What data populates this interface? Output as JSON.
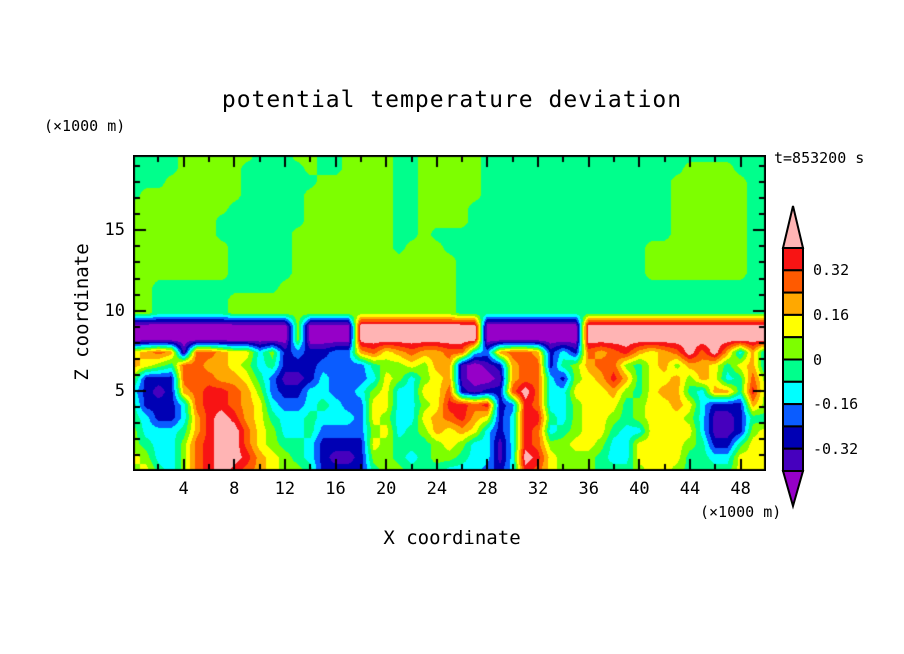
{
  "figure": {
    "title": "potential temperature deviation",
    "time_label": "t=853200 s",
    "y_unit_label": "(×1000 m)",
    "x_unit_label": "(×1000 m)"
  },
  "axes": {
    "x": {
      "label": "X coordinate",
      "ticks": [
        4,
        8,
        12,
        16,
        20,
        24,
        28,
        32,
        36,
        40,
        44,
        48
      ],
      "range": [
        0,
        50
      ],
      "major_step": 4,
      "minor_step": 2
    },
    "z": {
      "label": "Z coordinate",
      "ticks": [
        5,
        10,
        15
      ],
      "range": [
        0,
        19.7
      ],
      "major_step": 5,
      "minor_step": 1
    }
  },
  "colorbar": {
    "tick_labels": [
      {
        "text": "0.32",
        "boundary": 1
      },
      {
        "text": "0.16",
        "boundary": 3
      },
      {
        "text": "0",
        "boundary": 5
      },
      {
        "text": "-0.16",
        "boundary": 7
      },
      {
        "text": "-0.32",
        "boundary": 9
      }
    ]
  },
  "chart_data": {
    "type": "heatmap",
    "title": "potential temperature deviation",
    "xlabel": "X coordinate",
    "ylabel": "Z coordinate",
    "axis_units": "×1000 m",
    "time_label": "t=853200 s",
    "x_range": [
      0,
      50
    ],
    "z_range": [
      0,
      19.7
    ],
    "band_edges": [
      -0.4,
      -0.32,
      -0.24,
      -0.16,
      -0.08,
      0,
      0.08,
      0.16,
      0.24,
      0.32,
      0.4
    ],
    "palette_low_to_high": [
      "#9600C8",
      "#4600BE",
      "#0000B4",
      "#0A5CFF",
      "#00FFFF",
      "#00FF8C",
      "#7DFF00",
      "#FFFF00",
      "#FFA800",
      "#FF5A00",
      "#F81414",
      "#FFB4B4"
    ],
    "grid": {
      "note": "rows listed top (z=19.7) to bottom (z=0), 51 columns spanning x=0..50",
      "char_values": {
        "0": -0.46,
        "1": -0.36,
        "2": -0.28,
        "3": -0.2,
        "4": -0.12,
        "5": -0.04,
        "6": 0.04,
        "7": 0.12,
        "8": 0.2,
        "9": 0.28,
        "a": 0.36,
        "b": 0.46
      },
      "rows_top_to_bottom": [
        "555566666655566556666556666655555555555555555555555",
        "555566666555556556666556666655555555555555556666555",
        "555666666555555666666556666655555555555555566666655",
        "566666666555556666666556666655555555555555566666655",
        "666666665555556666666556666555555555555555566666655",
        "666666655555556666666556666555555555555555566666655",
        "666666655555566666666556555555555555555555566666655",
        "666666665555566666666566655555555555555556666666655",
        "666666665555566666666666665555555555555556666666655",
        "666666665555566666666666665555555555555556666666655",
        "665555555555666666666666665555555555555555555555555",
        "665555556666666666666666665555555555555555555555555",
        "665555556666666666666666665555555555555555555555555",
        "000000000000060000bbbbbbbbbb00000000bbbbbbbbbbbbbbb",
        "000000000000060000bbbbbbbbbb00000000bbbbbbbbbbbbbbb",
        "789819987746232233897898899438998242989a8789b9b8484",
        "876599887645222333356676881012899256899657868875784",
        "622299988753112433347646781001899426 78a85778687459",
        "421289aa9863224433467447792122 9b9447778657885 4885a",
        "522249aa98743345433774467aa9a23a944677756778742228 6",
        "542248aba87544544437644789a8724aa54677656777641125 5",
        "644458abb9764453333674568787424a945677544777741126 7",
        "654469abb9765542222765556764414a966776447777652257 7",
        "764469abba876542112665456654414ba76665447777554477 7",
        "675469aba98766522225665554443 24a9766655567765555777"
      ]
    }
  }
}
